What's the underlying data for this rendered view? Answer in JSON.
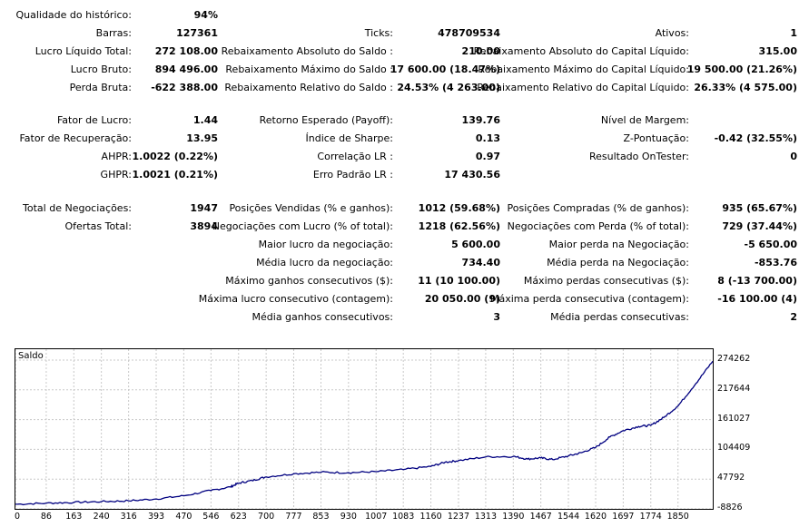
{
  "report": {
    "qualidade_label": "Qualidade do histórico:",
    "qualidade_value": "94%",
    "barras_label": "Barras:",
    "barras_value": "127361",
    "ticks_label": "Ticks:",
    "ticks_value": "478709534",
    "ativos_label": "Ativos:",
    "ativos_value": "1",
    "lucro_liquido_label": "Lucro Líquido Total:",
    "lucro_liquido_value": "272 108.00",
    "rebaix_abs_saldo_label": "Rebaixamento Absoluto do Saldo :",
    "rebaix_abs_saldo_value": "210.00",
    "rebaix_abs_cap_label": "Rebaixamento Absoluto do Capital Líquido:",
    "rebaix_abs_cap_value": "315.00",
    "lucro_bruto_label": "Lucro Bruto:",
    "lucro_bruto_value": "894 496.00",
    "rebaix_max_saldo_label": "Rebaixamento Máximo do Saldo :",
    "rebaix_max_saldo_value": "17 600.00 (18.47%)",
    "rebaix_max_cap_label": "Rebaixamento Máximo do Capital Líquido:",
    "rebaix_max_cap_value": "19 500.00 (21.26%)",
    "perda_bruta_label": "Perda Bruta:",
    "perda_bruta_value": "-622 388.00",
    "rebaix_rel_saldo_label": "Rebaixamento Relativo do Saldo :",
    "rebaix_rel_saldo_value": "24.53% (4 263.00)",
    "rebaix_rel_cap_label": "Rebaixamento Relativo do Capital Líquido:",
    "rebaix_rel_cap_value": "26.33% (4 575.00)",
    "fator_lucro_label": "Fator de Lucro:",
    "fator_lucro_value": "1.44",
    "retorno_label": "Retorno Esperado (Payoff):",
    "retorno_value": "139.76",
    "nivel_margem_label": "Nível de Margem:",
    "nivel_margem_value": "",
    "fator_recup_label": "Fator de Recuperação:",
    "fator_recup_value": "13.95",
    "sharpe_label": "Índice de Sharpe:",
    "sharpe_value": "0.13",
    "zpont_label": "Z-Pontuação:",
    "zpont_value": "-0.42 (32.55%)",
    "ahpr_label": "AHPR:",
    "ahpr_value": "1.0022 (0.22%)",
    "correl_label": "Correlação LR :",
    "correl_value": "0.97",
    "ontester_label": "Resultado OnTester:",
    "ontester_value": "0",
    "ghpr_label": "GHPR:",
    "ghpr_value": "1.0021 (0.21%)",
    "erro_label": "Erro Padrão LR :",
    "erro_value": "17 430.56",
    "total_neg_label": "Total de Negociações:",
    "total_neg_value": "1947",
    "pos_vend_label": "Posições Vendidas (% e ganhos):",
    "pos_vend_value": "1012 (59.68%)",
    "pos_comp_label": "Posições Compradas (% de ganhos):",
    "pos_comp_value": "935 (65.67%)",
    "ofertas_label": "Ofertas Total:",
    "ofertas_value": "3894",
    "neg_lucro_label": "Negociações com Lucro (% of total):",
    "neg_lucro_value": "1218 (62.56%)",
    "neg_perda_label": "Negociações com Perda (% of total):",
    "neg_perda_value": "729 (37.44%)",
    "maior_lucro_label": "Maior lucro da negociação:",
    "maior_lucro_value": "5 600.00",
    "maior_perda_label": "Maior perda na Negociação:",
    "maior_perda_value": "-5 650.00",
    "media_lucro_label": "Média lucro da negociação:",
    "media_lucro_value": "734.40",
    "media_perda_label": "Média perda na Negociação:",
    "media_perda_value": "-853.76",
    "max_ganhos_label": "Máximo ganhos consecutivos ($):",
    "max_ganhos_value": "11 (10 100.00)",
    "max_perdas_label": "Máximo perdas consecutivas ($):",
    "max_perdas_value": "8 (-13 700.00)",
    "max_lucro_cons_label": "Máxima lucro consecutivo (contagem):",
    "max_lucro_cons_value": "20 050.00 (9)",
    "max_perda_cons_label": "Máxima perda consecutiva (contagem):",
    "max_perda_cons_value": "-16 100.00 (4)",
    "media_ganhos_label": "Média ganhos consecutivos:",
    "media_ganhos_value": "3",
    "media_perdas_label": "Média perdas consecutivas:",
    "media_perdas_value": "2"
  },
  "chart_data": {
    "type": "line",
    "title": "Saldo",
    "line_color": "#000080",
    "grid": true,
    "xlim": [
      0,
      1947
    ],
    "ylim": [
      -8826,
      295000
    ],
    "yticks": [
      "274262",
      "217644",
      "161027",
      "104409",
      "47792",
      "-8826"
    ],
    "ytick_values": [
      274262,
      217644,
      161027,
      104409,
      47792,
      -8826
    ],
    "xticks": [
      "0",
      "86",
      "163",
      "240",
      "316",
      "393",
      "470",
      "546",
      "623",
      "700",
      "777",
      "853",
      "930",
      "1007",
      "1083",
      "1160",
      "1237",
      "1313",
      "1390",
      "1467",
      "1544",
      "1620",
      "1697",
      "1774",
      "1850"
    ],
    "xtick_values": [
      0,
      86,
      163,
      240,
      316,
      393,
      470,
      546,
      623,
      700,
      777,
      853,
      930,
      1007,
      1083,
      1160,
      1237,
      1313,
      1390,
      1467,
      1544,
      1620,
      1697,
      1774,
      1850
    ],
    "series": [
      {
        "x": [
          0,
          86,
          163,
          240,
          316,
          393,
          470,
          546,
          600,
          623,
          660,
          700,
          777,
          853,
          930,
          1007,
          1083,
          1160,
          1200,
          1237,
          1313,
          1390,
          1430,
          1467,
          1500,
          1544,
          1580,
          1620,
          1660,
          1697,
          1740,
          1774,
          1810,
          1850,
          1900,
          1947
        ],
        "y": [
          0,
          2000,
          3500,
          5000,
          6500,
          10000,
          16000,
          26000,
          33000,
          40000,
          45000,
          52000,
          58000,
          61000,
          60000,
          62000,
          66000,
          72000,
          80000,
          83000,
          90000,
          91000,
          86000,
          88000,
          85000,
          92000,
          98000,
          108000,
          128000,
          140000,
          148000,
          150000,
          165000,
          187000,
          230000,
          272108
        ]
      }
    ]
  }
}
